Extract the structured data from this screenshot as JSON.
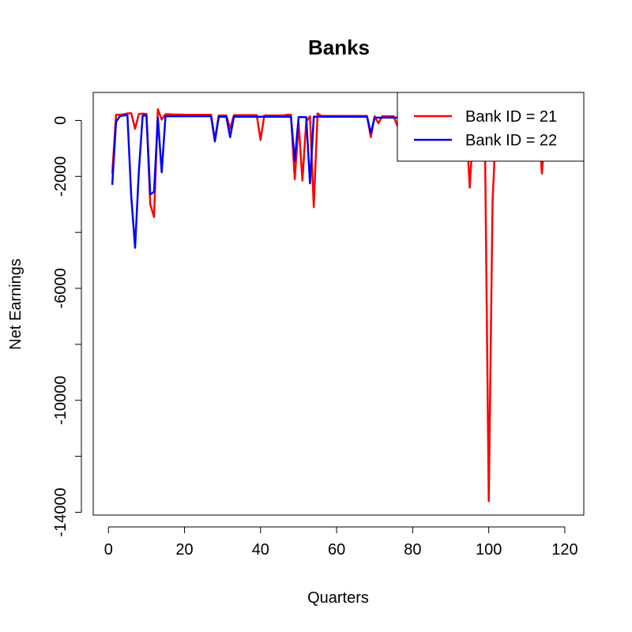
{
  "chart_data": {
    "type": "line",
    "title": "Banks",
    "xlabel": "Quarters",
    "ylabel": "Net Earnings",
    "xlim": [
      -4,
      125
    ],
    "ylim": [
      -14100,
      1000
    ],
    "xticks": [
      0,
      20,
      40,
      60,
      80,
      100,
      120
    ],
    "yticks": [
      0,
      -2000,
      -4000,
      -6000,
      -8000,
      -10000,
      -12000,
      -14000
    ],
    "yticklabels": [
      "0",
      "-2000",
      "",
      "-6000",
      "",
      "-10000",
      "",
      "-14000"
    ],
    "grid": false,
    "legend_position": "top-right",
    "series": [
      {
        "name": "Bank ID = 21",
        "color": "#ff0000",
        "x": [
          1,
          2,
          3,
          4,
          5,
          6,
          7,
          8,
          9,
          10,
          11,
          12,
          13,
          14,
          15,
          16,
          17,
          18,
          19,
          20,
          21,
          22,
          23,
          24,
          25,
          26,
          27,
          28,
          29,
          30,
          31,
          32,
          33,
          34,
          35,
          36,
          37,
          38,
          39,
          40,
          41,
          42,
          43,
          44,
          45,
          46,
          47,
          48,
          49,
          50,
          51,
          52,
          53,
          54,
          55,
          56,
          57,
          58,
          59,
          60,
          61,
          62,
          63,
          64,
          65,
          66,
          67,
          68,
          69,
          70,
          71,
          72,
          73,
          74,
          75,
          76,
          77,
          78,
          79,
          80,
          81,
          82,
          83,
          84,
          85,
          86,
          87,
          88,
          89,
          90,
          91,
          92,
          93,
          94,
          95,
          96,
          97,
          98,
          99,
          100,
          101,
          102,
          103,
          104,
          105,
          106,
          107,
          108,
          109,
          110,
          111,
          112,
          113,
          114,
          115,
          116,
          117,
          118,
          119,
          120,
          121
        ],
        "values": [
          -1900,
          200,
          200,
          220,
          250,
          260,
          -300,
          230,
          240,
          230,
          -3000,
          -3450,
          400,
          30,
          220,
          220,
          210,
          210,
          210,
          200,
          200,
          200,
          200,
          200,
          200,
          200,
          200,
          -700,
          180,
          180,
          180,
          -300,
          190,
          190,
          190,
          190,
          190,
          190,
          190,
          -700,
          180,
          180,
          180,
          180,
          180,
          180,
          200,
          200,
          -2100,
          -100,
          -2150,
          -50,
          150,
          -3100,
          250,
          160,
          160,
          160,
          160,
          160,
          160,
          160,
          160,
          160,
          160,
          160,
          160,
          160,
          -600,
          150,
          -100,
          150,
          150,
          150,
          150,
          -200,
          100,
          100,
          100,
          100,
          100,
          100,
          100,
          100,
          100,
          100,
          100,
          100,
          100,
          100,
          100,
          100,
          100,
          100,
          -2400,
          -100,
          100,
          100,
          -500,
          -13600,
          -2900,
          100,
          100,
          100,
          100,
          100,
          100,
          100,
          100,
          100,
          100,
          100,
          100,
          -1900,
          100,
          100,
          100,
          100,
          100,
          100,
          100
        ]
      },
      {
        "name": "Bank ID = 22",
        "color": "#0000ff",
        "x": [
          1,
          2,
          3,
          4,
          5,
          6,
          7,
          8,
          9,
          10,
          11,
          12,
          13,
          14,
          15,
          16,
          17,
          18,
          19,
          20,
          21,
          22,
          23,
          24,
          25,
          26,
          27,
          28,
          29,
          30,
          31,
          32,
          33,
          34,
          35,
          36,
          37,
          38,
          39,
          40,
          41,
          42,
          43,
          44,
          45,
          46,
          47,
          48,
          49,
          50,
          51,
          52,
          53,
          54,
          55,
          56,
          57,
          58,
          59,
          60,
          61,
          62,
          63,
          64,
          65,
          66,
          67,
          68,
          69,
          70,
          71,
          72,
          73,
          74,
          75,
          76
        ],
        "values": [
          -2300,
          -50,
          150,
          180,
          190,
          -2700,
          -4550,
          -1800,
          170,
          180,
          -2650,
          -2550,
          100,
          -1850,
          150,
          150,
          150,
          150,
          150,
          150,
          150,
          150,
          150,
          150,
          150,
          150,
          150,
          -750,
          130,
          130,
          130,
          -600,
          130,
          130,
          130,
          130,
          130,
          130,
          130,
          130,
          130,
          130,
          130,
          130,
          130,
          130,
          130,
          130,
          -1450,
          120,
          120,
          120,
          -2250,
          130,
          130,
          130,
          130,
          130,
          130,
          130,
          130,
          130,
          130,
          130,
          130,
          130,
          130,
          130,
          -450,
          100,
          100,
          100,
          100,
          100,
          100,
          100
        ]
      }
    ]
  }
}
